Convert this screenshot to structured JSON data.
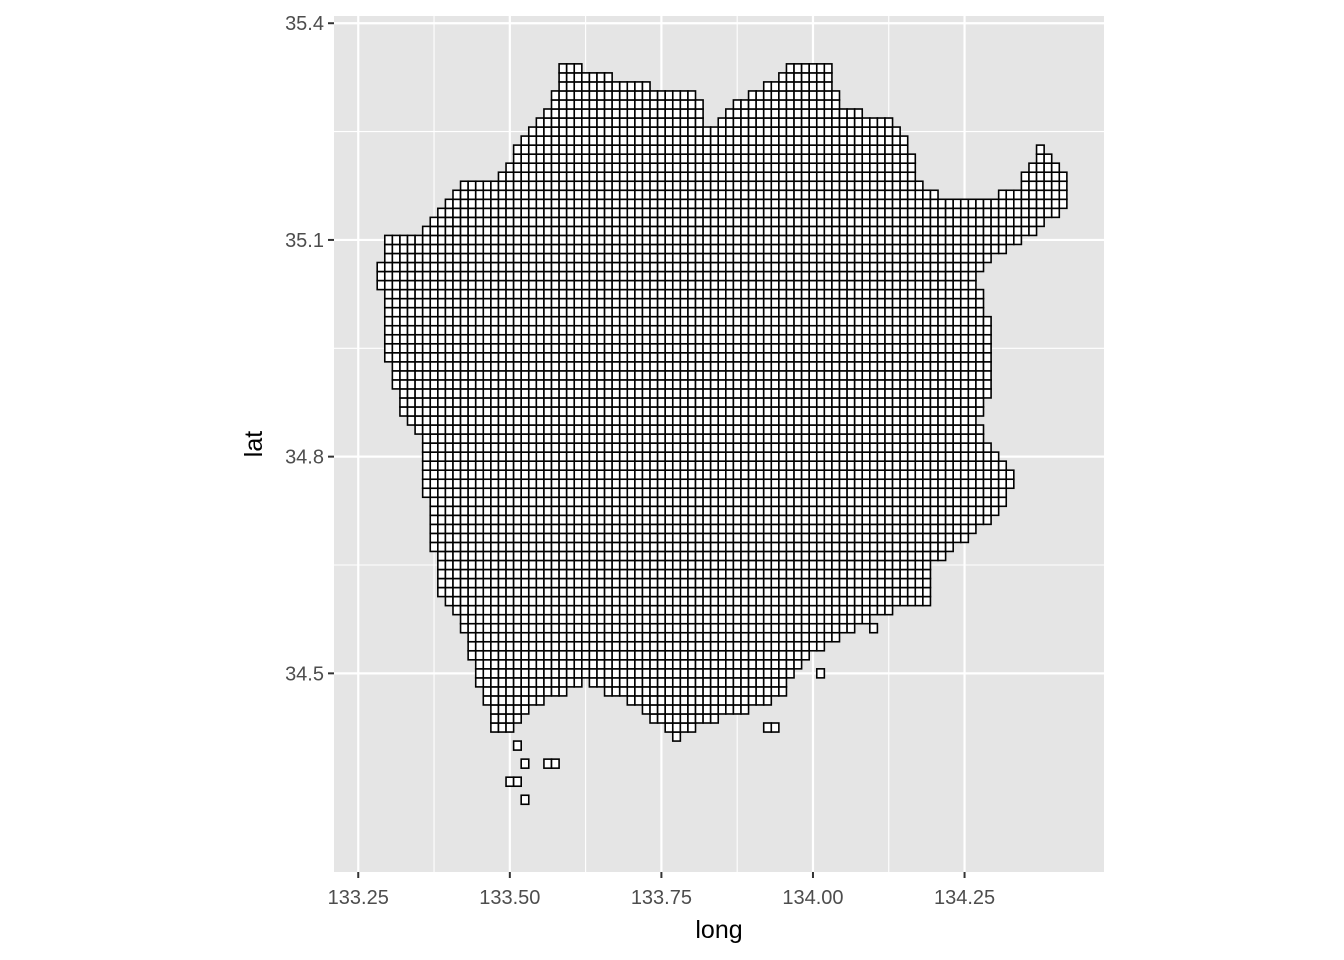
{
  "chart_data": {
    "type": "heatmap",
    "xlabel": "long",
    "ylabel": "lat",
    "xlim": [
      133.21,
      134.48
    ],
    "ylim": [
      34.225,
      35.41
    ],
    "x_ticks": [
      {
        "value": 133.25,
        "label": "133.25"
      },
      {
        "value": 133.5,
        "label": "133.50"
      },
      {
        "value": 133.75,
        "label": "133.75"
      },
      {
        "value": 134.0,
        "label": "134.00"
      },
      {
        "value": 134.25,
        "label": "134.25"
      }
    ],
    "y_ticks": [
      {
        "value": 34.5,
        "label": "34.5"
      },
      {
        "value": 34.8,
        "label": "34.8"
      },
      {
        "value": 35.1,
        "label": "35.1"
      },
      {
        "value": 35.4,
        "label": "35.4"
      }
    ],
    "cell_size_deg": 0.0125,
    "panel_background": "#e5e5e5",
    "grid_color": "#ffffff",
    "cell_fill": "#ffffff",
    "cell_outline": "#000000",
    "grid": true,
    "legend": "none",
    "region_outline": [
      [
        133.277,
        35.05
      ],
      [
        133.288,
        35.07
      ],
      [
        133.3,
        35.1
      ],
      [
        133.35,
        35.105
      ],
      [
        133.4,
        35.15
      ],
      [
        133.42,
        35.185
      ],
      [
        133.47,
        35.175
      ],
      [
        133.5,
        35.21
      ],
      [
        133.52,
        35.24
      ],
      [
        133.565,
        35.29
      ],
      [
        133.59,
        35.345
      ],
      [
        133.65,
        35.33
      ],
      [
        133.75,
        35.31
      ],
      [
        133.81,
        35.3
      ],
      [
        133.83,
        35.25
      ],
      [
        133.86,
        35.28
      ],
      [
        133.93,
        35.32
      ],
      [
        133.98,
        35.35
      ],
      [
        134.02,
        35.35
      ],
      [
        134.05,
        35.28
      ],
      [
        134.12,
        35.27
      ],
      [
        134.16,
        35.23
      ],
      [
        134.18,
        35.17
      ],
      [
        134.22,
        35.16
      ],
      [
        134.29,
        35.16
      ],
      [
        134.34,
        35.17
      ],
      [
        134.38,
        35.24
      ],
      [
        134.39,
        35.22
      ],
      [
        134.42,
        35.19
      ],
      [
        134.42,
        35.15
      ],
      [
        134.35,
        35.1
      ],
      [
        134.3,
        35.08
      ],
      [
        134.27,
        35.05
      ],
      [
        134.29,
        34.98
      ],
      [
        134.3,
        34.9
      ],
      [
        134.27,
        34.85
      ],
      [
        134.29,
        34.82
      ],
      [
        134.33,
        34.77
      ],
      [
        134.31,
        34.72
      ],
      [
        134.27,
        34.7
      ],
      [
        134.2,
        34.65
      ],
      [
        134.2,
        34.6
      ],
      [
        134.1,
        34.58
      ],
      [
        134.05,
        34.55
      ],
      [
        133.98,
        34.52
      ],
      [
        133.95,
        34.47
      ],
      [
        133.89,
        34.45
      ],
      [
        133.82,
        34.43
      ],
      [
        133.77,
        34.41
      ],
      [
        133.72,
        34.45
      ],
      [
        133.65,
        34.48
      ],
      [
        133.62,
        34.49
      ],
      [
        133.58,
        34.47
      ],
      [
        133.53,
        34.45
      ],
      [
        133.5,
        34.42
      ],
      [
        133.48,
        34.41
      ],
      [
        133.45,
        34.48
      ],
      [
        133.43,
        34.55
      ],
      [
        133.4,
        34.6
      ],
      [
        133.38,
        34.62
      ],
      [
        133.375,
        34.67
      ],
      [
        133.37,
        34.72
      ],
      [
        133.35,
        34.77
      ],
      [
        133.36,
        34.82
      ],
      [
        133.33,
        34.85
      ],
      [
        133.31,
        34.9
      ],
      [
        133.29,
        34.97
      ],
      [
        133.3,
        35.02
      ]
    ],
    "outlying_cells": [
      [
        133.5,
        34.42
      ],
      [
        133.51,
        34.4
      ],
      [
        133.53,
        34.38
      ],
      [
        133.56,
        34.37
      ],
      [
        133.58,
        34.37
      ],
      [
        133.5,
        34.35
      ],
      [
        133.51,
        34.35
      ],
      [
        133.53,
        34.33
      ],
      [
        133.92,
        34.42
      ],
      [
        133.94,
        34.42
      ],
      [
        134.1,
        34.565
      ],
      [
        134.01,
        34.5
      ]
    ]
  }
}
